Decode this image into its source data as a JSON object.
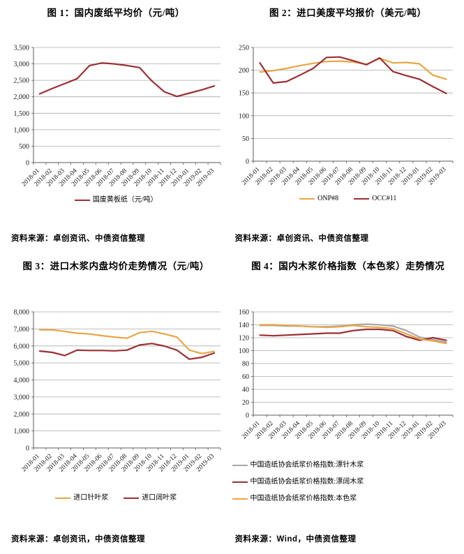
{
  "colors": {
    "red": "#9C2F33",
    "orange": "#E7A647",
    "gray": "#A8A8A8",
    "grid": "#ABABAB",
    "axis": "#595959"
  },
  "chart_data": [
    {
      "type": "line",
      "title": "图 1：国内废纸平均价（元/吨）",
      "source": "资料来源：卓创资讯、中债资信整理",
      "categories": [
        "2018-01",
        "2018-02",
        "2018-03",
        "2018-04",
        "2018-05",
        "2018-06",
        "2018-07",
        "2018-08",
        "2018-09",
        "2018-10",
        "2018-11",
        "2018-12",
        "2019-01",
        "2019-02",
        "2019-03"
      ],
      "series": [
        {
          "name": "国废黄板纸（元/吨）",
          "color": "#9C2F33",
          "values": [
            2090,
            2250,
            2400,
            2550,
            2950,
            3030,
            3000,
            2950,
            2890,
            2480,
            2150,
            2010,
            2110,
            2210,
            2330
          ]
        }
      ],
      "ylim": [
        0,
        3500
      ],
      "ystep": 500,
      "xlabel": "",
      "ylabel": "",
      "grid": true,
      "legend_position": "bottom",
      "legend_stacked": false
    },
    {
      "type": "line",
      "title": "图 2：进口美废平均报价（美元/吨）",
      "source": "资料来源：卓创资讯、中债资信整理",
      "categories": [
        "2018-01",
        "2018-02",
        "2018-03",
        "2018-04",
        "2018-05",
        "2018-06",
        "2018-07",
        "2018-08",
        "2018-09",
        "2018-10",
        "2018-11",
        "2018-12",
        "2019-01",
        "2019-02",
        "2019-03"
      ],
      "series": [
        {
          "name": "ONP#8",
          "color": "#E7A647",
          "values": [
            196,
            199,
            204,
            210,
            215,
            219,
            220,
            218,
            213,
            226,
            216,
            217,
            214,
            189,
            180
          ]
        },
        {
          "name": "OCC#11",
          "color": "#9C2F33",
          "values": [
            216,
            172,
            175,
            189,
            204,
            228,
            229,
            221,
            212,
            227,
            197,
            188,
            180,
            164,
            149
          ]
        }
      ],
      "ylim": [
        0,
        250
      ],
      "ystep": 50,
      "xlabel": "",
      "ylabel": "",
      "grid": true,
      "legend_position": "bottom",
      "legend_stacked": false
    },
    {
      "type": "line",
      "title": "图 3：进口木浆内盘均价走势情况（元/吨）",
      "source": "资料来源：卓创资讯，中债资信整理",
      "categories": [
        "2018-01",
        "2018-02",
        "2018-03",
        "2018-04",
        "2018-05",
        "2018-06",
        "2018-07",
        "2018-08",
        "2018-09",
        "2018-10",
        "2018-11",
        "2018-12",
        "2019-01",
        "2019-02",
        "2019-03"
      ],
      "series": [
        {
          "name": "进口针叶浆",
          "color": "#E7A647",
          "values": [
            6950,
            6940,
            6850,
            6750,
            6700,
            6600,
            6520,
            6450,
            6780,
            6860,
            6700,
            6520,
            5750,
            5550,
            5680
          ]
        },
        {
          "name": "进口阔叶浆",
          "color": "#9C2F33",
          "values": [
            5700,
            5620,
            5430,
            5750,
            5730,
            5730,
            5710,
            5750,
            6050,
            6140,
            5990,
            5750,
            5220,
            5330,
            5580
          ]
        }
      ],
      "ylim": [
        0,
        8000
      ],
      "ystep": 1000,
      "xlabel": "",
      "ylabel": "",
      "grid": true,
      "legend_position": "bottom",
      "legend_stacked": false
    },
    {
      "type": "line",
      "title": "图 4：国内木浆价格指数（本色浆）走势情况",
      "source": "资料来源：Wind，中债资信整理",
      "categories": [
        "2018-01",
        "2018-02",
        "2018-03",
        "2018-04",
        "2018-05",
        "2018-06",
        "2018-07",
        "2018-08",
        "2018-09",
        "2018-10",
        "2018-11",
        "2018-12",
        "2019-01",
        "2019-02",
        "2019-03"
      ],
      "series": [
        {
          "name": "中国造纸协会纸浆价格指数:漂针木浆",
          "color": "#A8A8A8",
          "values": [
            139,
            139,
            138,
            138,
            137,
            137,
            138,
            140,
            141,
            140,
            138,
            131,
            121,
            117,
            113
          ]
        },
        {
          "name": "中国造纸协会纸浆价格指数:漂阔木浆",
          "color": "#9C2F33",
          "values": [
            124,
            123,
            124,
            125,
            126,
            127,
            127,
            131,
            133,
            133,
            131,
            122,
            116,
            120,
            116
          ]
        },
        {
          "name": "中国造纸协会纸浆价格指数:本色浆",
          "color": "#E7A647",
          "values": [
            140,
            140,
            139,
            138,
            137,
            136,
            137,
            139,
            137,
            136,
            134,
            126,
            118,
            115,
            111
          ]
        }
      ],
      "ylim": [
        0,
        160
      ],
      "ystep": 20,
      "xlabel": "",
      "ylabel": "",
      "grid": true,
      "legend_position": "bottom",
      "legend_stacked": true
    }
  ]
}
